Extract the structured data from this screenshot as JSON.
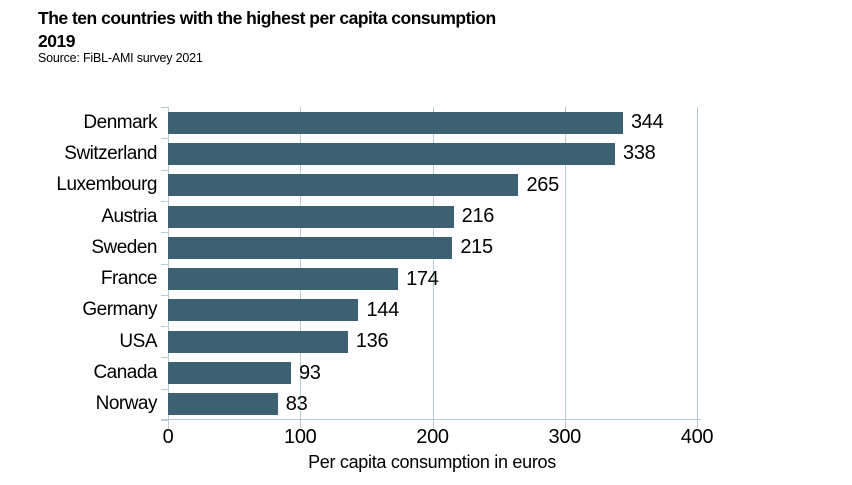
{
  "page": {
    "background": "#ffffff"
  },
  "chart_data": {
    "type": "bar",
    "orientation": "horizontal",
    "title": "The ten countries with the highest per capita consumption",
    "subtitle": "2019",
    "source": "Source: FiBL-AMI survey 2021",
    "xlabel": "Per capita consumption in euros",
    "categories": [
      "Denmark",
      "Switzerland",
      "Luxembourg",
      "Austria",
      "Sweden",
      "France",
      "Germany",
      "USA",
      "Canada",
      "Norway"
    ],
    "values": [
      344,
      338,
      265,
      216,
      215,
      174,
      144,
      136,
      93,
      83
    ],
    "xticks": [
      0,
      100,
      200,
      300,
      400
    ],
    "xlim": [
      0,
      400
    ],
    "grid": true,
    "legend": false,
    "bar_color": "#3d6172",
    "grid_color": "#b7cbd4",
    "text_color": "#000000"
  }
}
